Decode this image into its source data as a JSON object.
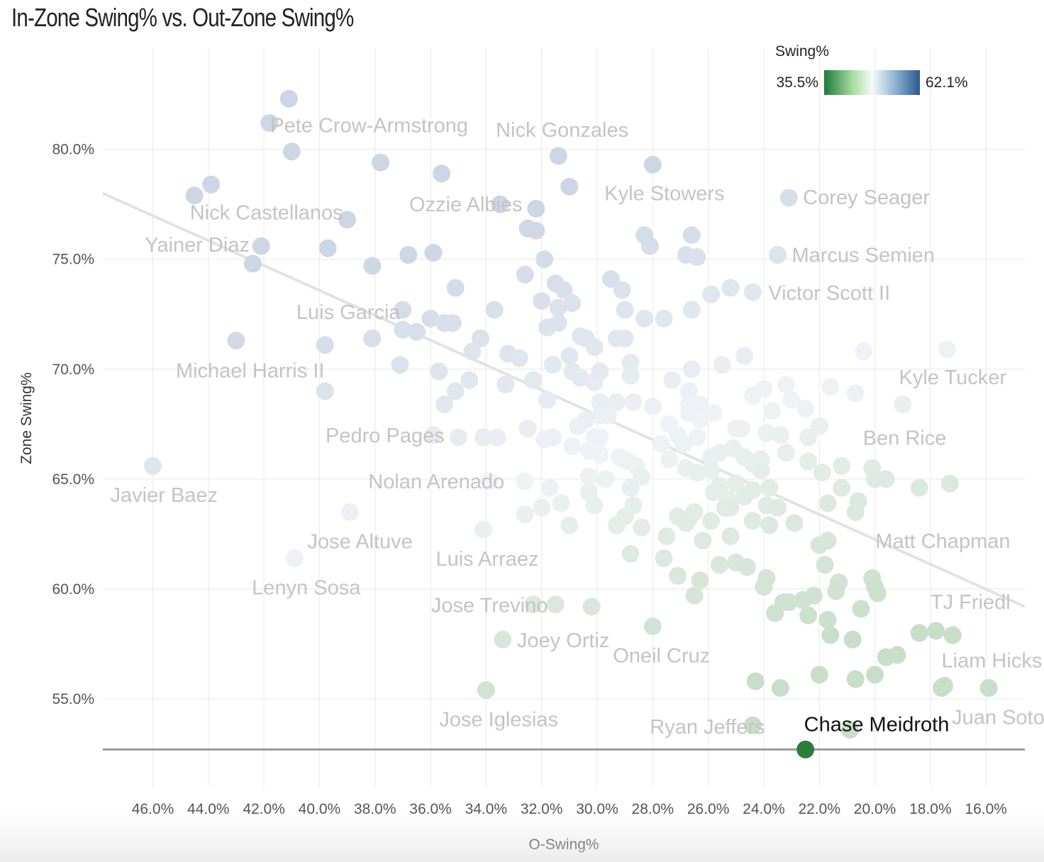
{
  "chart_data": {
    "type": "scatter",
    "title": "In-Zone Swing% vs. Out-Zone Swing%",
    "xlabel": "O-Swing%",
    "ylabel": "Zone Swing%",
    "x_reversed": true,
    "xlim": [
      47.8,
      14.6
    ],
    "ylim": [
      51.0,
      84.6
    ],
    "x_ticks": [
      46,
      44,
      42,
      40,
      38,
      36,
      34,
      32,
      30,
      28,
      26,
      24,
      22,
      20,
      18,
      16
    ],
    "y_ticks": [
      55,
      60,
      65,
      70,
      75,
      80
    ],
    "x_tick_labels": [
      "46.0%",
      "44.0%",
      "42.0%",
      "40.0%",
      "38.0%",
      "36.0%",
      "34.0%",
      "32.0%",
      "30.0%",
      "28.0%",
      "26.0%",
      "24.0%",
      "22.0%",
      "20.0%",
      "18.0%",
      "16.0%"
    ],
    "y_tick_labels": [
      "55.0%",
      "60.0%",
      "65.0%",
      "70.0%",
      "75.0%",
      "80.0%"
    ],
    "legend": {
      "title": "Swing%",
      "min_label": "35.5%",
      "max_label": "62.1%",
      "colors": [
        "#1f7a3a",
        "#a8dca0",
        "#f5fbf6",
        "#7ea6cc",
        "#2b5a8c"
      ],
      "position": "top-right"
    },
    "trend_line": {
      "x1": 47.8,
      "y1": 78.0,
      "x2": 14.6,
      "y2": 59.2,
      "color": "#e3e3e3"
    },
    "reference_line": {
      "y": 52.7,
      "color": "#999999"
    },
    "highlight": {
      "name": "Chase Meidroth",
      "x": 22.5,
      "y": 52.7,
      "color": "#2b7d3e"
    },
    "labels": [
      {
        "name": "Pete Crow-Armstrong",
        "x": 41.0,
        "y": 82.3
      },
      {
        "name": "Nick Castellanos",
        "x": 43.9,
        "y": 78.4
      },
      {
        "name": "Yainer Diaz",
        "x": 44.5,
        "y": 77.9
      },
      {
        "name": "Nick Gonzales",
        "x": 31.4,
        "y": 79.7
      },
      {
        "name": "Ozzie Albies",
        "x": 33.5,
        "y": 77.5
      },
      {
        "name": "Kyle Stowers",
        "x": 28.0,
        "y": 79.3
      },
      {
        "name": "Corey Seager",
        "x": 23.1,
        "y": 77.8
      },
      {
        "name": "Marcus Semien",
        "x": 23.5,
        "y": 75.2
      },
      {
        "name": "Victor Scott II",
        "x": 24.4,
        "y": 73.5
      },
      {
        "name": "Luis Garcia",
        "x": 37.0,
        "y": 72.7
      },
      {
        "name": "Michael Harris II",
        "x": 43.0,
        "y": 71.3
      },
      {
        "name": "Kyle Tucker",
        "x": 17.6,
        "y": 70.9
      },
      {
        "name": "Pedro Pages",
        "x": 36.0,
        "y": 67.0
      },
      {
        "name": "Ben Rice",
        "x": 19.0,
        "y": 68.4
      },
      {
        "name": "Nolan Arenado",
        "x": 33.9,
        "y": 64.9
      },
      {
        "name": "Javier Baez",
        "x": 46.0,
        "y": 65.6
      },
      {
        "name": "Matt Chapman",
        "x": 18.5,
        "y": 64.6
      },
      {
        "name": "Jose Altuve",
        "x": 38.9,
        "y": 63.5
      },
      {
        "name": "Luis Arraez",
        "x": 34.1,
        "y": 62.7
      },
      {
        "name": "Lenyn Sosa",
        "x": 40.9,
        "y": 61.4
      },
      {
        "name": "Jose Trevino",
        "x": 32.3,
        "y": 59.3
      },
      {
        "name": "TJ Friedl",
        "x": 18.0,
        "y": 58.1
      },
      {
        "name": "Joey Ortiz",
        "x": 33.4,
        "y": 57.7
      },
      {
        "name": "Oneil Cruz",
        "x": 28.0,
        "y": 58.3
      },
      {
        "name": "Liam Hicks",
        "x": 17.6,
        "y": 55.5
      },
      {
        "name": "Jose Iglesias",
        "x": 34.0,
        "y": 55.4
      },
      {
        "name": "Juan Soto",
        "x": 15.9,
        "y": 55.5
      },
      {
        "name": "Ryan Jeffers",
        "x": 24.4,
        "y": 53.8
      }
    ],
    "points": [
      [
        41.1,
        82.3
      ],
      [
        41.8,
        81.2
      ],
      [
        41.0,
        79.9
      ],
      [
        37.8,
        79.4
      ],
      [
        35.6,
        78.9
      ],
      [
        31.4,
        79.7
      ],
      [
        28.0,
        79.3
      ],
      [
        31.0,
        78.3
      ],
      [
        32.2,
        77.3
      ],
      [
        33.5,
        77.5
      ],
      [
        43.9,
        78.4
      ],
      [
        44.5,
        77.9
      ],
      [
        39.0,
        76.8
      ],
      [
        42.1,
        75.6
      ],
      [
        42.4,
        74.8
      ],
      [
        39.7,
        75.5
      ],
      [
        38.1,
        74.7
      ],
      [
        36.8,
        75.2
      ],
      [
        35.9,
        75.3
      ],
      [
        32.5,
        76.4
      ],
      [
        32.2,
        76.3
      ],
      [
        31.9,
        75.0
      ],
      [
        32.6,
        74.3
      ],
      [
        31.5,
        73.9
      ],
      [
        31.2,
        73.6
      ],
      [
        30.9,
        73.0
      ],
      [
        31.4,
        72.8
      ],
      [
        32.0,
        73.1
      ],
      [
        29.5,
        74.1
      ],
      [
        29.1,
        73.6
      ],
      [
        28.3,
        76.1
      ],
      [
        28.1,
        75.6
      ],
      [
        26.6,
        76.1
      ],
      [
        26.8,
        75.2
      ],
      [
        26.4,
        75.1
      ],
      [
        25.9,
        73.4
      ],
      [
        25.2,
        73.7
      ],
      [
        35.1,
        73.7
      ],
      [
        33.7,
        72.7
      ],
      [
        37.0,
        72.7
      ],
      [
        36.0,
        72.3
      ],
      [
        35.5,
        72.1
      ],
      [
        35.2,
        72.1
      ],
      [
        43.0,
        71.3
      ],
      [
        39.8,
        71.1
      ],
      [
        38.1,
        71.4
      ],
      [
        37.0,
        71.8
      ],
      [
        36.5,
        71.7
      ],
      [
        34.2,
        71.4
      ],
      [
        34.5,
        70.8
      ],
      [
        33.2,
        70.7
      ],
      [
        32.8,
        70.5
      ],
      [
        31.8,
        71.9
      ],
      [
        31.4,
        72.1
      ],
      [
        30.6,
        71.5
      ],
      [
        30.4,
        71.4
      ],
      [
        30.1,
        71.0
      ],
      [
        29.3,
        71.4
      ],
      [
        29.0,
        71.4
      ],
      [
        29.0,
        72.7
      ],
      [
        28.3,
        72.3
      ],
      [
        27.6,
        72.3
      ],
      [
        26.6,
        72.7
      ],
      [
        37.1,
        70.2
      ],
      [
        35.7,
        69.9
      ],
      [
        34.6,
        69.5
      ],
      [
        33.3,
        69.3
      ],
      [
        32.3,
        69.5
      ],
      [
        31.6,
        70.2
      ],
      [
        31.0,
        70.6
      ],
      [
        30.9,
        69.9
      ],
      [
        30.6,
        69.6
      ],
      [
        30.1,
        69.4
      ],
      [
        29.9,
        69.9
      ],
      [
        29.9,
        68.5
      ],
      [
        28.8,
        70.3
      ],
      [
        28.8,
        69.7
      ],
      [
        29.3,
        68.5
      ],
      [
        28.7,
        68.5
      ],
      [
        27.3,
        69.5
      ],
      [
        26.6,
        70.0
      ],
      [
        26.7,
        69.0
      ],
      [
        26.7,
        68.4
      ],
      [
        26.3,
        68.4
      ],
      [
        26.7,
        68.0
      ],
      [
        26.3,
        67.7
      ],
      [
        25.8,
        68.0
      ],
      [
        39.8,
        69.0
      ],
      [
        35.1,
        69.0
      ],
      [
        35.5,
        68.4
      ],
      [
        35.9,
        67.0
      ],
      [
        35.0,
        66.9
      ],
      [
        34.1,
        66.9
      ],
      [
        33.6,
        66.9
      ],
      [
        32.5,
        67.3
      ],
      [
        31.9,
        66.8
      ],
      [
        31.6,
        66.9
      ],
      [
        31.8,
        68.6
      ],
      [
        30.9,
        66.5
      ],
      [
        30.7,
        67.4
      ],
      [
        30.4,
        67.7
      ],
      [
        29.9,
        67.9
      ],
      [
        30.1,
        66.9
      ],
      [
        29.9,
        66.9
      ],
      [
        29.6,
        67.9
      ],
      [
        30.3,
        66.3
      ],
      [
        29.9,
        66.1
      ],
      [
        29.2,
        66.0
      ],
      [
        28.9,
        65.8
      ],
      [
        28.6,
        65.6
      ],
      [
        28.4,
        65.1
      ],
      [
        28.0,
        68.3
      ],
      [
        27.4,
        67.5
      ],
      [
        27.1,
        67.0
      ],
      [
        26.9,
        66.6
      ],
      [
        27.7,
        66.6
      ],
      [
        27.4,
        65.9
      ],
      [
        26.8,
        65.5
      ],
      [
        26.4,
        66.9
      ],
      [
        26.4,
        65.3
      ],
      [
        25.9,
        66.0
      ],
      [
        25.6,
        66.2
      ],
      [
        25.9,
        65.4
      ],
      [
        25.6,
        64.7
      ],
      [
        25.8,
        64.4
      ],
      [
        25.3,
        64.1
      ],
      [
        25.2,
        63.7
      ],
      [
        24.7,
        64.2
      ],
      [
        25.0,
        64.8
      ],
      [
        24.4,
        64.5
      ],
      [
        25.1,
        66.4
      ],
      [
        24.7,
        66.0
      ],
      [
        24.4,
        65.7
      ],
      [
        24.1,
        65.9
      ],
      [
        24.1,
        65.4
      ],
      [
        23.8,
        64.6
      ],
      [
        23.9,
        63.8
      ],
      [
        23.5,
        63.7
      ],
      [
        24.4,
        63.1
      ],
      [
        23.8,
        62.9
      ],
      [
        25.0,
        67.3
      ],
      [
        24.8,
        67.3
      ],
      [
        24.4,
        68.8
      ],
      [
        24.0,
        69.1
      ],
      [
        23.7,
        68.1
      ],
      [
        23.2,
        69.3
      ],
      [
        23.0,
        68.6
      ],
      [
        22.5,
        68.2
      ],
      [
        23.9,
        67.1
      ],
      [
        23.4,
        67.0
      ],
      [
        23.2,
        66.2
      ],
      [
        22.4,
        66.9
      ],
      [
        22.0,
        67.4
      ],
      [
        22.4,
        65.8
      ],
      [
        21.9,
        65.3
      ],
      [
        21.7,
        63.9
      ],
      [
        21.2,
        65.6
      ],
      [
        21.2,
        64.6
      ],
      [
        20.7,
        63.5
      ],
      [
        20.6,
        64.0
      ],
      [
        20.1,
        65.5
      ],
      [
        20.0,
        65.0
      ],
      [
        19.6,
        65.0
      ],
      [
        18.4,
        64.6
      ],
      [
        17.3,
        64.8
      ],
      [
        19.0,
        68.4
      ],
      [
        21.6,
        69.2
      ],
      [
        20.7,
        68.9
      ],
      [
        22.9,
        63.0
      ],
      [
        22.0,
        62.0
      ],
      [
        21.7,
        62.2
      ],
      [
        21.8,
        61.1
      ],
      [
        21.3,
        60.3
      ],
      [
        21.4,
        59.9
      ],
      [
        20.1,
        60.5
      ],
      [
        20.0,
        60.1
      ],
      [
        19.9,
        59.8
      ],
      [
        20.5,
        59.1
      ],
      [
        24.7,
        70.6
      ],
      [
        25.5,
        70.2
      ],
      [
        20.4,
        70.8
      ],
      [
        17.4,
        70.9
      ],
      [
        33.9,
        64.9
      ],
      [
        32.6,
        64.9
      ],
      [
        31.7,
        64.6
      ],
      [
        31.3,
        63.9
      ],
      [
        31.0,
        62.9
      ],
      [
        30.3,
        64.4
      ],
      [
        30.1,
        63.8
      ],
      [
        30.3,
        65.1
      ],
      [
        29.7,
        65.0
      ],
      [
        29.3,
        62.9
      ],
      [
        29.0,
        63.3
      ],
      [
        28.8,
        64.6
      ],
      [
        28.7,
        63.8
      ],
      [
        28.4,
        62.8
      ],
      [
        28.8,
        61.6
      ],
      [
        27.5,
        62.4
      ],
      [
        27.6,
        61.4
      ],
      [
        27.1,
        63.3
      ],
      [
        26.7,
        63.2
      ],
      [
        26.8,
        63.0
      ],
      [
        26.5,
        63.5
      ],
      [
        26.2,
        62.2
      ],
      [
        25.9,
        63.1
      ],
      [
        25.4,
        63.7
      ],
      [
        25.2,
        62.4
      ],
      [
        25.6,
        61.1
      ],
      [
        25.0,
        61.2
      ],
      [
        24.6,
        61.0
      ],
      [
        27.1,
        60.6
      ],
      [
        26.3,
        60.4
      ],
      [
        26.5,
        59.7
      ],
      [
        23.9,
        60.5
      ],
      [
        24.0,
        60.1
      ],
      [
        23.6,
        58.9
      ],
      [
        23.3,
        59.4
      ],
      [
        23.1,
        59.4
      ],
      [
        22.6,
        59.5
      ],
      [
        22.4,
        58.8
      ],
      [
        22.2,
        59.7
      ],
      [
        21.6,
        57.9
      ],
      [
        21.7,
        58.6
      ],
      [
        20.8,
        57.7
      ],
      [
        19.6,
        56.9
      ],
      [
        19.2,
        57.0
      ],
      [
        18.4,
        58.0
      ],
      [
        17.8,
        58.1
      ],
      [
        17.2,
        57.9
      ],
      [
        22.0,
        56.1
      ],
      [
        20.7,
        55.9
      ],
      [
        20.0,
        56.1
      ],
      [
        24.3,
        55.8
      ],
      [
        23.4,
        55.5
      ],
      [
        17.6,
        55.5
      ],
      [
        17.5,
        55.6
      ],
      [
        15.9,
        55.5
      ],
      [
        24.4,
        53.8
      ],
      [
        20.9,
        53.6
      ],
      [
        32.3,
        59.3
      ],
      [
        31.5,
        59.3
      ],
      [
        30.2,
        59.2
      ],
      [
        33.4,
        57.7
      ],
      [
        28.0,
        58.3
      ],
      [
        34.0,
        55.4
      ],
      [
        34.1,
        62.7
      ],
      [
        38.9,
        63.5
      ],
      [
        40.9,
        61.4
      ],
      [
        46.0,
        65.6
      ],
      [
        23.5,
        75.2
      ],
      [
        24.4,
        73.5
      ],
      [
        23.1,
        77.8
      ],
      [
        32.0,
        63.7
      ],
      [
        32.6,
        63.4
      ]
    ]
  }
}
